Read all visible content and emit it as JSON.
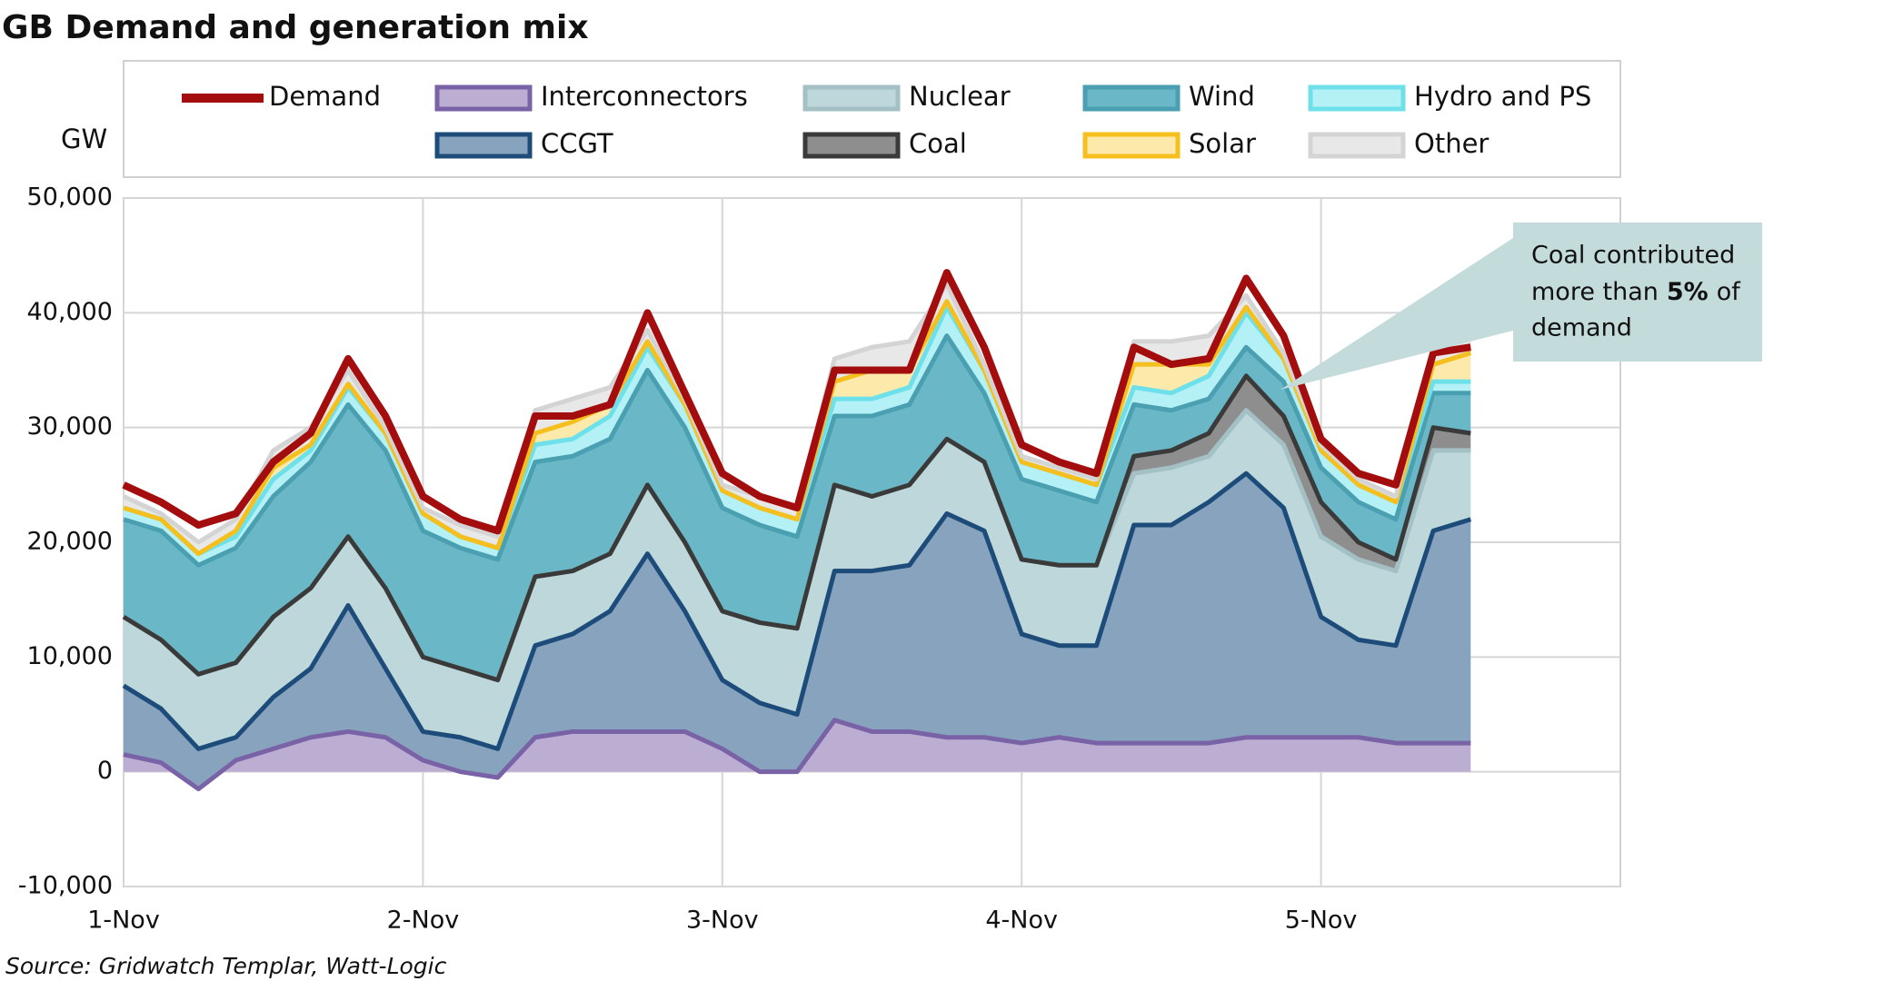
{
  "chart_data": {
    "type": "stacked-area",
    "title": "GB Demand and generation mix",
    "y_label": "GW",
    "source": "Source: Gridwatch Templar, Watt-Logic",
    "annotation": [
      "Coal contributed",
      "more than",
      "5%",
      "of",
      "demand"
    ],
    "x": [
      0,
      0.125,
      0.25,
      0.375,
      0.5,
      0.625,
      0.75,
      0.875,
      1,
      1.125,
      1.25,
      1.375,
      1.5,
      1.625,
      1.75,
      1.875,
      2,
      2.125,
      2.25,
      2.375,
      2.5,
      2.625,
      2.75,
      2.875,
      3,
      3.125,
      3.25,
      3.375,
      3.5,
      3.625,
      3.75,
      3.875,
      4,
      4.125,
      4.25,
      4.375,
      4.5
    ],
    "xlim": [
      0,
      5
    ],
    "xticks": [
      {
        "value": 0,
        "label": "1-Nov"
      },
      {
        "value": 1,
        "label": "2-Nov"
      },
      {
        "value": 2,
        "label": "3-Nov"
      },
      {
        "value": 3,
        "label": "4-Nov"
      },
      {
        "value": 4,
        "label": "5-Nov"
      }
    ],
    "ylim": [
      -10000,
      50000
    ],
    "yticks": [
      {
        "value": -10000,
        "label": "-10,000"
      },
      0,
      {
        "value": 10000,
        "label": "10,000"
      },
      {
        "value": 20000,
        "label": "20,000"
      },
      {
        "value": 30000,
        "label": "30,000"
      },
      {
        "value": 40000,
        "label": "40,000"
      },
      {
        "value": 50000,
        "label": "50,000"
      }
    ],
    "grid": true,
    "demand": {
      "name": "Demand",
      "color": "#a30d0d",
      "values": [
        25000,
        23500,
        21500,
        22500,
        27000,
        29500,
        36000,
        31000,
        24000,
        22000,
        21000,
        31000,
        31000,
        32000,
        40000,
        33000,
        26000,
        24000,
        23000,
        35000,
        35000,
        35000,
        43500,
        37000,
        28500,
        27000,
        26000,
        37000,
        35500,
        36000,
        43000,
        38000,
        29000,
        26000,
        25000,
        36500,
        37000
      ]
    },
    "series": [
      {
        "name": "Interconnectors",
        "color": "#bcadd3",
        "line_color": "#7a62a6",
        "values": [
          1500,
          800,
          -1500,
          1000,
          2000,
          3000,
          3500,
          3000,
          1000,
          0,
          -500,
          3000,
          3500,
          3500,
          3500,
          3500,
          2000,
          0,
          0,
          4500,
          3500,
          3500,
          3000,
          3000,
          2500,
          3000,
          2500,
          2500,
          2500,
          2500,
          3000,
          3000,
          3000,
          3000,
          2500,
          2500,
          2500
        ]
      },
      {
        "name": "CCGT",
        "color": "#87a3bd",
        "line_color": "#1d4c7a",
        "values": [
          6000,
          4700,
          3500,
          2000,
          4500,
          6000,
          11000,
          6000,
          2500,
          3000,
          2500,
          8000,
          8500,
          10500,
          15500,
          10500,
          6000,
          6000,
          5000,
          13000,
          14000,
          14500,
          19500,
          18000,
          9500,
          8000,
          8500,
          19000,
          19000,
          21000,
          23000,
          20000,
          10500,
          8500,
          8500,
          18500,
          19500
        ]
      },
      {
        "name": "Nuclear",
        "color": "#bdd7da",
        "line_color": "#a3c1c5",
        "values": [
          6000,
          6000,
          6500,
          6500,
          7000,
          7000,
          6000,
          7000,
          6500,
          6000,
          6000,
          6000,
          5500,
          5000,
          6000,
          6000,
          6000,
          7000,
          7500,
          7500,
          6500,
          7000,
          6500,
          6000,
          6500,
          7000,
          7000,
          4500,
          5000,
          4000,
          5500,
          5500,
          7000,
          7000,
          6500,
          7000,
          6000
        ]
      },
      {
        "name": "Coal",
        "color": "#8e8e8e",
        "line_color": "#3a3a3a",
        "values": [
          0,
          0,
          0,
          0,
          0,
          0,
          0,
          0,
          0,
          0,
          0,
          0,
          0,
          0,
          0,
          0,
          0,
          0,
          0,
          0,
          0,
          0,
          0,
          0,
          0,
          0,
          0,
          1500,
          1500,
          2000,
          3000,
          2500,
          3000,
          1500,
          1000,
          2000,
          1500
        ]
      },
      {
        "name": "Wind",
        "color": "#6ab8c7",
        "line_color": "#4a9fb0",
        "values": [
          8500,
          9500,
          9500,
          10000,
          10500,
          11000,
          11500,
          12000,
          11000,
          10500,
          10500,
          10000,
          10000,
          10000,
          10000,
          10000,
          9000,
          8500,
          8000,
          6000,
          7000,
          7000,
          9000,
          6000,
          7000,
          6500,
          5500,
          4500,
          3500,
          3000,
          2500,
          3000,
          3000,
          3500,
          3500,
          3000,
          3500
        ]
      },
      {
        "name": "Hydro and PS",
        "color": "#b3f1f6",
        "line_color": "#6ee0ea",
        "values": [
          1000,
          1000,
          1000,
          1000,
          1500,
          1000,
          1500,
          1500,
          1500,
          1000,
          1000,
          1500,
          1500,
          2000,
          2000,
          2000,
          1500,
          1500,
          1500,
          1500,
          1500,
          1500,
          2500,
          2000,
          1500,
          1500,
          1500,
          1500,
          1500,
          2000,
          3000,
          2000,
          1500,
          1500,
          1500,
          1000,
          1000
        ]
      },
      {
        "name": "Solar",
        "color": "#fde9a9",
        "line_color": "#f5bf1e",
        "values": [
          0,
          0,
          0,
          500,
          1000,
          500,
          300,
          0,
          0,
          0,
          0,
          1000,
          1500,
          1000,
          500,
          0,
          0,
          0,
          0,
          1500,
          2500,
          1500,
          500,
          0,
          0,
          0,
          0,
          2000,
          2500,
          1000,
          500,
          0,
          0,
          0,
          0,
          1500,
          2500
        ]
      },
      {
        "name": "Other",
        "color": "#e8e8e8",
        "line_color": "#d4d4d4",
        "values": [
          1000,
          500,
          1000,
          1000,
          1500,
          1500,
          1200,
          500,
          500,
          1000,
          1000,
          2000,
          2000,
          1500,
          1000,
          500,
          500,
          1000,
          1000,
          2000,
          2000,
          2500,
          1500,
          500,
          500,
          500,
          500,
          2000,
          2000,
          2500,
          1000,
          500,
          500,
          500,
          500,
          1500,
          1500
        ]
      }
    ]
  }
}
